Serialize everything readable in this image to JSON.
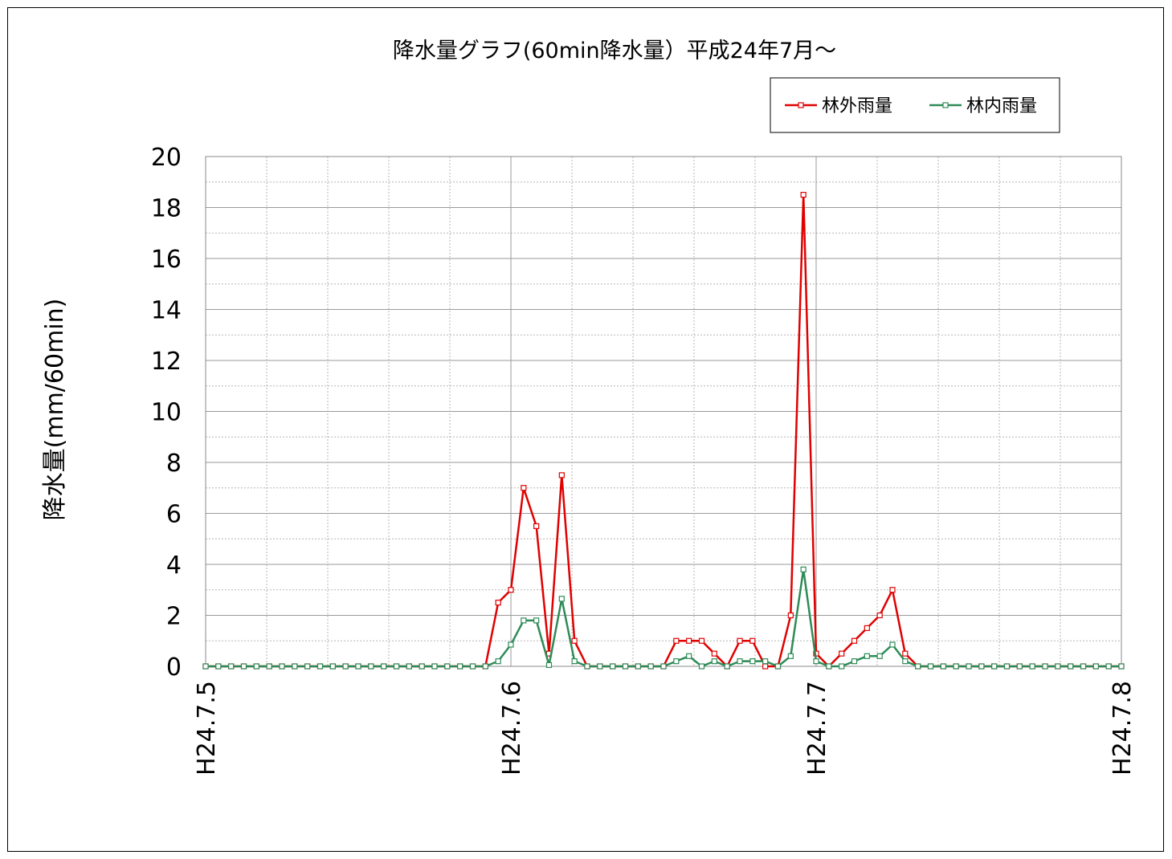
{
  "chart_data": {
    "type": "line",
    "title": "降水量グラフ(60min降水量）平成24年7月～",
    "ylabel": "降水量(mm/60min)",
    "xlabel": "",
    "ylim": [
      0,
      20
    ],
    "y_major_ticks": [
      0,
      2,
      4,
      6,
      8,
      10,
      12,
      14,
      16,
      18,
      20
    ],
    "y_minor_step": 1,
    "xlim": [
      0,
      72
    ],
    "x_ticks": [
      {
        "label": "H24.7.5",
        "x": 0
      },
      {
        "label": "H24.7.6",
        "x": 24
      },
      {
        "label": "H24.7.7",
        "x": 48
      },
      {
        "label": "H24.7.8",
        "x": 72
      }
    ],
    "x_minor_step": 4.8,
    "grid": true,
    "legend": "top-right",
    "series": [
      {
        "name": "林外雨量",
        "color": "#e00000",
        "marker": "open-square",
        "points": [
          [
            0,
            0
          ],
          [
            1,
            0
          ],
          [
            2,
            0
          ],
          [
            3,
            0
          ],
          [
            4,
            0
          ],
          [
            5,
            0
          ],
          [
            6,
            0
          ],
          [
            7,
            0
          ],
          [
            8,
            0
          ],
          [
            9,
            0
          ],
          [
            10,
            0
          ],
          [
            11,
            0
          ],
          [
            12,
            0
          ],
          [
            13,
            0
          ],
          [
            14,
            0
          ],
          [
            15,
            0
          ],
          [
            16,
            0
          ],
          [
            17,
            0
          ],
          [
            18,
            0
          ],
          [
            19,
            0
          ],
          [
            20,
            0
          ],
          [
            21,
            0
          ],
          [
            22,
            0
          ],
          [
            23,
            2.5
          ],
          [
            24,
            3
          ],
          [
            25,
            7
          ],
          [
            26,
            5.5
          ],
          [
            27,
            0.5
          ],
          [
            28,
            7.5
          ],
          [
            29,
            1
          ],
          [
            30,
            0
          ],
          [
            31,
            0
          ],
          [
            32,
            0
          ],
          [
            33,
            0
          ],
          [
            34,
            0
          ],
          [
            35,
            0
          ],
          [
            36,
            0
          ],
          [
            37,
            1
          ],
          [
            38,
            1
          ],
          [
            39,
            1
          ],
          [
            40,
            0.5
          ],
          [
            41,
            0
          ],
          [
            42,
            1
          ],
          [
            43,
            1
          ],
          [
            44,
            0
          ],
          [
            45,
            0
          ],
          [
            46,
            2
          ],
          [
            47,
            18.5
          ],
          [
            48,
            0.5
          ],
          [
            49,
            0
          ],
          [
            50,
            0.5
          ],
          [
            51,
            1
          ],
          [
            52,
            1.5
          ],
          [
            53,
            2
          ],
          [
            54,
            3
          ],
          [
            55,
            0.5
          ],
          [
            56,
            0
          ],
          [
            57,
            0
          ],
          [
            58,
            0
          ],
          [
            59,
            0
          ],
          [
            60,
            0
          ],
          [
            61,
            0
          ],
          [
            62,
            0
          ],
          [
            63,
            0
          ],
          [
            64,
            0
          ],
          [
            65,
            0
          ],
          [
            66,
            0
          ],
          [
            67,
            0
          ],
          [
            68,
            0
          ],
          [
            69,
            0
          ],
          [
            70,
            0
          ],
          [
            71,
            0
          ],
          [
            72,
            0
          ]
        ]
      },
      {
        "name": "林内雨量",
        "color": "#2e8b57",
        "marker": "open-square",
        "points": [
          [
            0,
            0
          ],
          [
            1,
            0
          ],
          [
            2,
            0
          ],
          [
            3,
            0
          ],
          [
            4,
            0
          ],
          [
            5,
            0
          ],
          [
            6,
            0
          ],
          [
            7,
            0
          ],
          [
            8,
            0
          ],
          [
            9,
            0
          ],
          [
            10,
            0
          ],
          [
            11,
            0
          ],
          [
            12,
            0
          ],
          [
            13,
            0
          ],
          [
            14,
            0
          ],
          [
            15,
            0
          ],
          [
            16,
            0
          ],
          [
            17,
            0
          ],
          [
            18,
            0
          ],
          [
            19,
            0
          ],
          [
            20,
            0
          ],
          [
            21,
            0
          ],
          [
            22,
            0
          ],
          [
            23,
            0.2
          ],
          [
            24,
            0.85
          ],
          [
            25,
            1.8
          ],
          [
            26,
            1.8
          ],
          [
            27,
            0.05
          ],
          [
            28,
            2.65
          ],
          [
            29,
            0.2
          ],
          [
            30,
            0
          ],
          [
            31,
            0
          ],
          [
            32,
            0
          ],
          [
            33,
            0
          ],
          [
            34,
            0
          ],
          [
            35,
            0
          ],
          [
            36,
            0
          ],
          [
            37,
            0.2
          ],
          [
            38,
            0.4
          ],
          [
            39,
            0
          ],
          [
            40,
            0.2
          ],
          [
            41,
            0
          ],
          [
            42,
            0.2
          ],
          [
            43,
            0.2
          ],
          [
            44,
            0.2
          ],
          [
            45,
            0
          ],
          [
            46,
            0.4
          ],
          [
            47,
            3.8
          ],
          [
            48,
            0.2
          ],
          [
            49,
            0
          ],
          [
            50,
            0
          ],
          [
            51,
            0.2
          ],
          [
            52,
            0.4
          ],
          [
            53,
            0.4
          ],
          [
            54,
            0.85
          ],
          [
            55,
            0.2
          ],
          [
            56,
            0
          ],
          [
            57,
            0
          ],
          [
            58,
            0
          ],
          [
            59,
            0
          ],
          [
            60,
            0
          ],
          [
            61,
            0
          ],
          [
            62,
            0
          ],
          [
            63,
            0
          ],
          [
            64,
            0
          ],
          [
            65,
            0
          ],
          [
            66,
            0
          ],
          [
            67,
            0
          ],
          [
            68,
            0
          ],
          [
            69,
            0
          ],
          [
            70,
            0
          ],
          [
            71,
            0
          ],
          [
            72,
            0
          ]
        ]
      }
    ]
  }
}
